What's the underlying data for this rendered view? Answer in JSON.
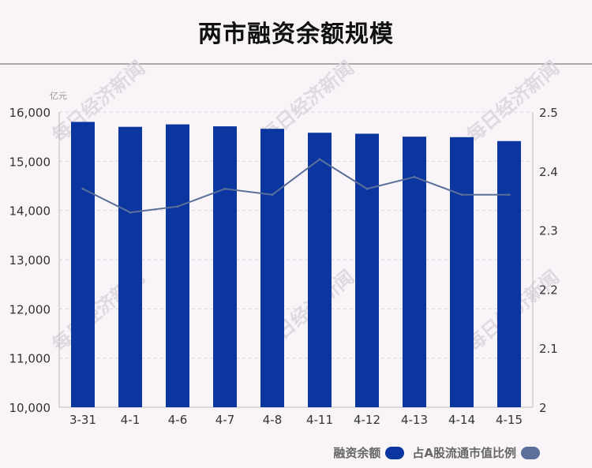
{
  "title": "两市融资余额规模",
  "watermark": "每日经济新闻",
  "colors": {
    "bar": "#0b36a0",
    "line": "#5a6f9a",
    "grid": "#d8d6dc",
    "text": "#333333"
  },
  "chart_data": {
    "type": "bar",
    "categories": [
      "3-31",
      "4-1",
      "4-6",
      "4-7",
      "4-8",
      "4-11",
      "4-12",
      "4-13",
      "4-14",
      "4-15"
    ],
    "series": [
      {
        "name": "融资余额",
        "type": "bar",
        "axis": "left",
        "values": [
          15800,
          15700,
          15750,
          15710,
          15660,
          15580,
          15560,
          15500,
          15490,
          15410
        ]
      },
      {
        "name": "占A股流通市值比例",
        "type": "line",
        "axis": "right",
        "values": [
          2.37,
          2.33,
          2.34,
          2.37,
          2.36,
          2.42,
          2.37,
          2.39,
          2.36,
          2.36
        ]
      }
    ],
    "y_left": {
      "unit": "亿元",
      "min": 10000,
      "max": 16000,
      "ticks": [
        "10,000",
        "11,000",
        "12,000",
        "13,000",
        "14,000",
        "15,000",
        "16,000"
      ]
    },
    "y_right": {
      "min": 2.0,
      "max": 2.5,
      "ticks": [
        "2",
        "2.1",
        "2.2",
        "2.3",
        "2.4",
        "2.5"
      ]
    },
    "grid": true,
    "legend_position": "bottom-right"
  }
}
